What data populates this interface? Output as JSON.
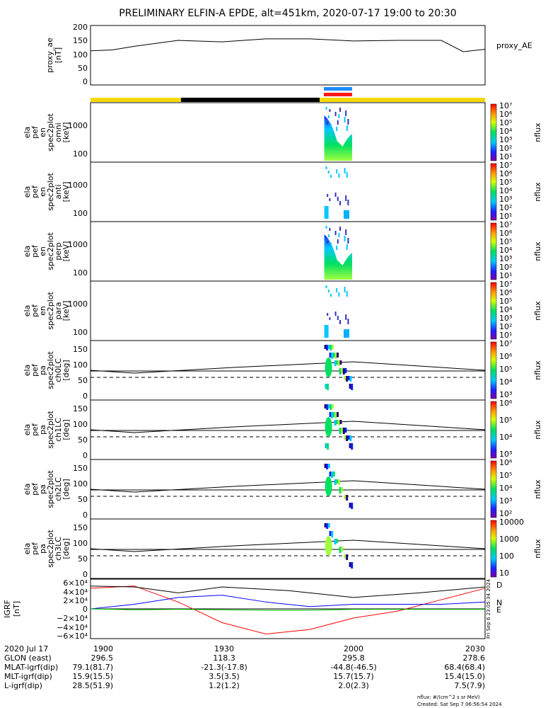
{
  "title": "PRELIMINARY ELFIN-A EPDE, alt=451km, 2020-07-17 19:00 to 20:30",
  "colors": {
    "yellow_bar": "#f5d800",
    "black_bar": "#000000",
    "blue_marker": "#1e8bff",
    "red_marker": "#ff1a1a",
    "north": "#0000ff",
    "east": "#00c000",
    "down": "#ff0000"
  },
  "panels": {
    "proxy_ae": {
      "ylabel": "proxy_ae",
      "units": "[nT]",
      "legend": "proxy_AE",
      "ticks": [
        "200",
        "150",
        "100",
        "50",
        "0"
      ]
    },
    "spectra": [
      {
        "label": [
          "ela",
          "pef",
          "en",
          "spec2plot",
          "omni",
          "[keV]"
        ],
        "ticks": [
          "1000",
          "100"
        ],
        "cb_ticks": [
          "10⁷",
          "10⁶",
          "10⁵",
          "10⁴",
          "10³",
          "10²",
          "10¹"
        ],
        "cb_label": "nflux"
      },
      {
        "label": [
          "ela",
          "pef",
          "en",
          "spec2plot",
          "anti",
          "[keV]"
        ],
        "ticks": [
          "1000",
          "100"
        ],
        "cb_ticks": [
          "10⁷",
          "10⁶",
          "10⁵",
          "10⁴",
          "10³",
          "10²",
          "10¹"
        ],
        "cb_label": "nflux"
      },
      {
        "label": [
          "ela",
          "pef",
          "en",
          "spec2plot",
          "perp",
          "[keV]"
        ],
        "ticks": [
          "1000",
          "100"
        ],
        "cb_ticks": [
          "10⁷",
          "10⁶",
          "10⁵",
          "10⁴",
          "10³",
          "10²",
          "10¹"
        ],
        "cb_label": "nflux"
      },
      {
        "label": [
          "ela",
          "pef",
          "en",
          "spec2plot",
          "para",
          "[keV]"
        ],
        "ticks": [
          "1000",
          "100"
        ],
        "cb_ticks": [
          "10⁷",
          "10⁶",
          "10⁵",
          "10⁴",
          "10³",
          "10²",
          "10¹"
        ],
        "cb_label": "nflux"
      }
    ],
    "pitch": [
      {
        "label": [
          "ela",
          "pef",
          "pa",
          "spec2plot",
          "ch0LC",
          "[deg]"
        ],
        "ticks": [
          "150",
          "100",
          "50",
          "0"
        ],
        "cb_ticks": [
          "10⁷",
          "10⁶",
          "10⁵",
          "10⁴",
          "10³"
        ],
        "cb_label": "nflux"
      },
      {
        "label": [
          "ela",
          "pef",
          "pa",
          "spec2plot",
          "ch1LC",
          "[deg]"
        ],
        "ticks": [
          "150",
          "100",
          "50",
          "0"
        ],
        "cb_ticks": [
          "10⁶",
          "10⁵",
          "10⁴",
          "10³"
        ],
        "cb_label": "nflux"
      },
      {
        "label": [
          "ela",
          "pef",
          "pa",
          "spec2plot",
          "ch2LC",
          "[deg]"
        ],
        "ticks": [
          "150",
          "100",
          "50",
          "0"
        ],
        "cb_ticks": [
          "10⁶",
          "10⁵",
          "10⁴",
          "10³",
          "10²"
        ],
        "cb_label": "nflux"
      },
      {
        "label": [
          "ela",
          "pef",
          "pa",
          "spec2plot",
          "ch3LC",
          "[deg]"
        ],
        "ticks": [
          "150",
          "100",
          "50",
          "0"
        ],
        "cb_ticks": [
          "10000",
          "1000",
          "100",
          "10"
        ],
        "cb_label": "nflux"
      }
    ],
    "igrf": {
      "ylabel": "IGRF",
      "units": "[nT]",
      "ticks": [
        "6×10⁴",
        "4×10⁴",
        "2×10⁴",
        "0",
        "−2×10⁴",
        "−4×10⁴",
        "−6×10⁴"
      ],
      "legend": [
        "D",
        "N",
        "E"
      ],
      "stamp": "Fri Sep 6 23:05:34 2024"
    }
  },
  "footer": {
    "rows": [
      [
        "2020 Jul 17",
        "1900",
        "1930",
        "2000",
        "2030"
      ],
      [
        "GLON (east)",
        "296.5",
        "118.3",
        "295.8",
        "278.6"
      ],
      [
        "MLAT-igrf(dip)",
        "79.1(81.7)",
        "-21.3(-17.8)",
        "-44.8(-46.5)",
        "68.4(68.4)"
      ],
      [
        "MLT-igrf(dip)",
        "15.9(15.5)",
        "3.5(3.5)",
        "15.7(15.7)",
        "15.4(15.0)"
      ],
      [
        "L-igrf(dip)",
        "28.5(51.9)",
        "1.2(1.2)",
        "2.0(2.3)",
        "7.5(7.9)"
      ]
    ],
    "units_note": "nflux: #/(cm^2 s sr MeV)",
    "created": "Created: Sat Sep  7 06:56:54 2024"
  },
  "chart_data": [
    {
      "type": "line",
      "title": "proxy_AE",
      "ylabel": "proxy_ae [nT]",
      "ylim": [
        0,
        200
      ],
      "x": [
        "19:00",
        "19:05",
        "19:10",
        "19:20",
        "19:30",
        "19:40",
        "19:50",
        "20:00",
        "20:10",
        "20:20",
        "20:25",
        "20:30"
      ],
      "series": [
        {
          "name": "proxy_AE",
          "values": [
            115,
            118,
            130,
            150,
            145,
            155,
            155,
            148,
            150,
            150,
            112,
            120
          ]
        }
      ]
    },
    {
      "type": "heatmap",
      "title": "omni",
      "ylabel": "[keV]",
      "ylim": [
        60,
        7000
      ],
      "scale": "log",
      "active_interval": [
        "19:53",
        "20:00"
      ]
    },
    {
      "type": "heatmap",
      "title": "anti",
      "ylabel": "[keV]",
      "ylim": [
        60,
        7000
      ],
      "scale": "log",
      "active_interval": [
        "19:53",
        "20:00"
      ]
    },
    {
      "type": "heatmap",
      "title": "perp",
      "ylabel": "[keV]",
      "ylim": [
        60,
        7000
      ],
      "scale": "log",
      "active_interval": [
        "19:53",
        "20:00"
      ]
    },
    {
      "type": "heatmap",
      "title": "para",
      "ylabel": "[keV]",
      "ylim": [
        60,
        7000
      ],
      "scale": "log",
      "active_interval": [
        "19:53",
        "20:00"
      ]
    },
    {
      "type": "heatmap",
      "title": "ch0LC",
      "ylabel": "[deg]",
      "ylim": [
        0,
        180
      ],
      "active_interval": [
        "19:53",
        "20:00"
      ]
    },
    {
      "type": "heatmap",
      "title": "ch1LC",
      "ylabel": "[deg]",
      "ylim": [
        0,
        180
      ],
      "active_interval": [
        "19:53",
        "20:00"
      ]
    },
    {
      "type": "heatmap",
      "title": "ch2LC",
      "ylabel": "[deg]",
      "ylim": [
        0,
        180
      ],
      "active_interval": [
        "19:53",
        "20:00"
      ]
    },
    {
      "type": "heatmap",
      "title": "ch3LC",
      "ylabel": "[deg]",
      "ylim": [
        0,
        180
      ],
      "active_interval": [
        "19:53",
        "20:00"
      ]
    },
    {
      "type": "line",
      "title": "IGRF",
      "ylabel": "IGRF [nT]",
      "ylim": [
        -65000,
        65000
      ],
      "x": [
        "19:00",
        "19:10",
        "19:20",
        "19:30",
        "19:40",
        "19:50",
        "20:00",
        "20:10",
        "20:20",
        "20:30"
      ],
      "series": [
        {
          "name": "D",
          "values": [
            45000,
            50000,
            15000,
            -30000,
            -55000,
            -45000,
            -20000,
            -5000,
            20000,
            45000
          ]
        },
        {
          "name": "N",
          "values": [
            0,
            10000,
            25000,
            30000,
            15000,
            5000,
            10000,
            10000,
            10000,
            15000
          ]
        },
        {
          "name": "E",
          "values": [
            0,
            -2000,
            -1000,
            -2000,
            -3000,
            -3000,
            -1000,
            -1000,
            -1000,
            -1000
          ]
        }
      ]
    }
  ]
}
